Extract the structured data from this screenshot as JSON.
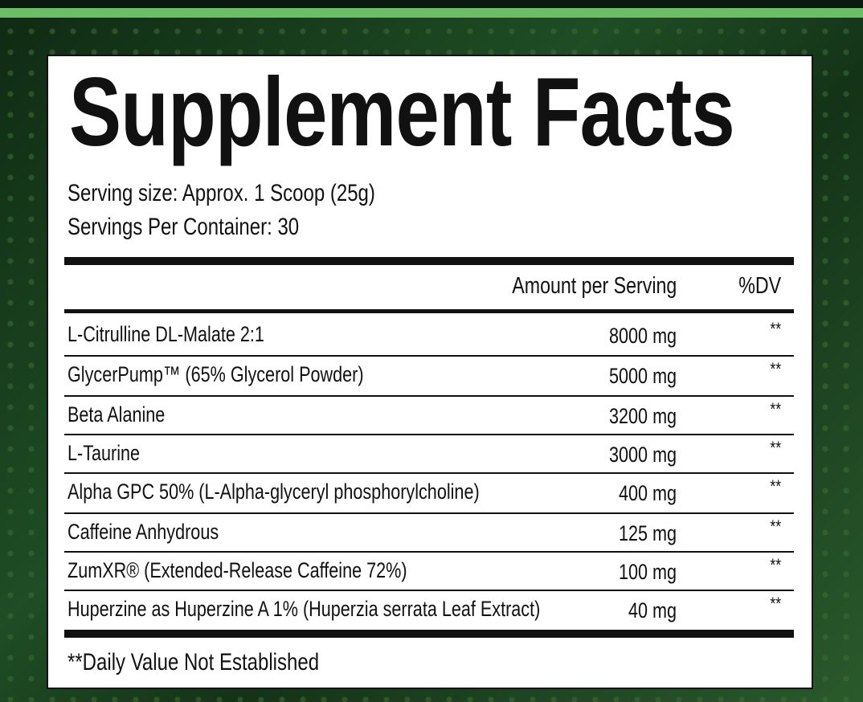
{
  "header": {
    "title": "Supplement Facts",
    "serving_size": "Serving size: Approx. 1 Scoop (25g)",
    "servings_per_container": "Servings Per Container: 30"
  },
  "table": {
    "columns": [
      "Amount per Serving",
      "%DV"
    ],
    "rows": [
      [
        "L-Citrulline DL-Malate 2:1",
        "8000 mg",
        "**"
      ],
      [
        "GlycerPump™ (65% Glycerol Powder)",
        "5000 mg",
        "**"
      ],
      [
        "Beta Alanine",
        "3200 mg",
        "**"
      ],
      [
        "L-Taurine",
        "3000 mg",
        "**"
      ],
      [
        "Alpha GPC 50% (L-Alpha-glyceryl phosphorylcholine)",
        "400 mg",
        "**"
      ],
      [
        "Caffeine Anhydrous",
        "125 mg",
        "**"
      ],
      [
        "ZumXR® (Extended-Release Caffeine 72%)",
        "100 mg",
        "**"
      ],
      [
        "Huperzine as Huperzine A 1% (Huperzia serrata Leaf Extract)",
        "40 mg",
        "**"
      ]
    ]
  },
  "footnote": "**Daily Value Not Established"
}
